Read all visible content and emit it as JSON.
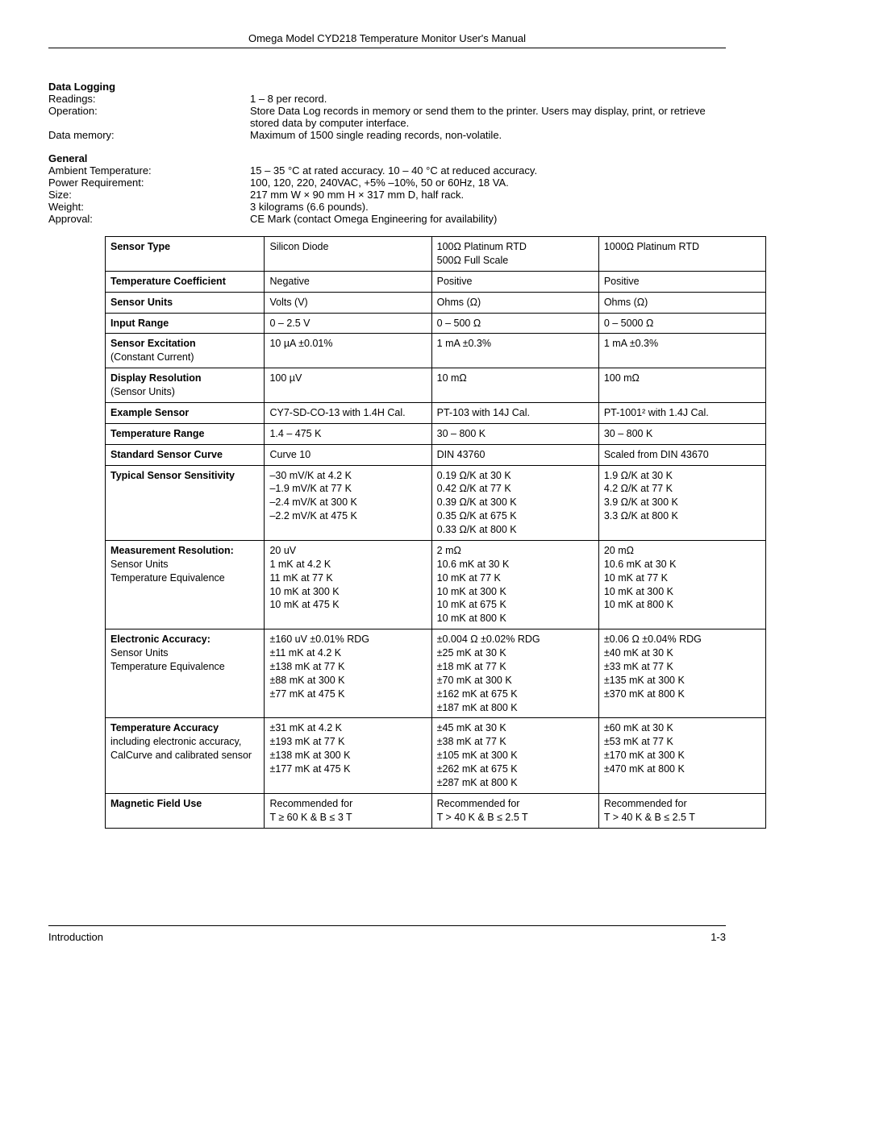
{
  "header": {
    "title": "Omega Model CYD218 Temperature Monitor User's Manual"
  },
  "dataLogging": {
    "heading": "Data Logging",
    "readings_label": "Readings:",
    "readings_value": "1 – 8 per record.",
    "operation_label": "Operation:",
    "operation_value": "Store Data Log records in memory or send them to the printer. Users may display, print, or retrieve stored data by computer interface.",
    "datamem_label": "Data memory:",
    "datamem_value": "Maximum of 1500 single reading records, non-volatile."
  },
  "general": {
    "heading": "General",
    "ambient_label": "Ambient Temperature:",
    "ambient_value": "15 – 35 °C at rated accuracy. 10 – 40 °C at reduced accuracy.",
    "power_label": "Power Requirement:",
    "power_value": "100, 120, 220, 240VAC, +5% –10%, 50 or 60Hz, 18 VA.",
    "size_label": "Size:",
    "size_value": "217 mm W × 90 mm H × 317 mm D, half rack.",
    "weight_label": "Weight:",
    "weight_value": "3 kilograms (6.6 pounds).",
    "approval_label": "Approval:",
    "approval_value": "CE Mark (contact Omega Engineering for availability)"
  },
  "table": {
    "rows": {
      "sensor_type": {
        "h": "Sensor Type",
        "c1": "Silicon Diode",
        "c2a": "100Ω Platinum RTD",
        "c2b": "500Ω Full Scale",
        "c3": "1000Ω Platinum RTD"
      },
      "temp_coeff": {
        "h": "Temperature Coefficient",
        "c1": "Negative",
        "c2": "Positive",
        "c3": "Positive"
      },
      "sensor_units": {
        "h": "Sensor Units",
        "c1": "Volts (V)",
        "c2": "Ohms (Ω)",
        "c3": "Ohms (Ω)"
      },
      "input_range": {
        "h": "Input Range",
        "c1": "0 – 2.5 V",
        "c2": "0 – 500 Ω",
        "c3": "0 – 5000 Ω"
      },
      "excitation": {
        "h1": "Sensor Excitation",
        "h2": "(Constant Current)",
        "c1": "10 µA ±0.01%",
        "c2": "1 mA ±0.3%",
        "c3": "1 mA ±0.3%"
      },
      "disp_res": {
        "h1": "Display Resolution",
        "h2": "(Sensor Units)",
        "c1": "100 µV",
        "c2": "10 mΩ",
        "c3": "100 mΩ"
      },
      "example": {
        "h": "Example Sensor",
        "c1": "CY7-SD-CO-13 with 1.4H Cal.",
        "c2": "PT-103 with 14J Cal.",
        "c3": "PT-1001² with 1.4J Cal."
      },
      "temp_range": {
        "h": "Temperature Range",
        "c1": "1.4 – 475 K",
        "c2": "30 – 800 K",
        "c3": "30 – 800 K"
      },
      "std_curve": {
        "h": "Standard Sensor Curve",
        "c1": "Curve 10",
        "c2": "DIN 43760",
        "c3": "Scaled from DIN 43670"
      },
      "sensitivity": {
        "h": "Typical Sensor Sensitivity",
        "c1": [
          "–30 mV/K at 4.2 K",
          "–1.9 mV/K at 77 K",
          "–2.4 mV/K at 300 K",
          "–2.2 mV/K at 475 K"
        ],
        "c2": [
          "0.19 Ω/K at 30 K",
          "0.42 Ω/K at 77 K",
          "0.39 Ω/K at 300 K",
          "0.35 Ω/K at 675 K",
          "0.33 Ω/K at 800 K"
        ],
        "c3": [
          "1.9 Ω/K at 30 K",
          "4.2 Ω/K at 77 K",
          "3.9 Ω/K at 300 K",
          "3.3 Ω/K at 800 K"
        ]
      },
      "meas_res": {
        "h": "Measurement Resolution:",
        "sub1": "Sensor Units",
        "sub2": "Temperature Equivalence",
        "c1": [
          "20 uV",
          "1 mK at 4.2 K",
          "11 mK at 77  K",
          "10 mK at 300 K",
          "10 mK at 475 K"
        ],
        "c2": [
          "2 mΩ",
          "10.6 mK at 30 K",
          "10 mK at 77 K",
          "10 mK at 300 K",
          "10 mK at 675 K",
          "10 mK at 800 K"
        ],
        "c3": [
          "20 mΩ",
          "10.6 mK at 30 K",
          "10 mK at 77 K",
          "10 mK at 300 K",
          "10 mK at 800 K"
        ]
      },
      "elec_acc": {
        "h": "Electronic Accuracy:",
        "sub1": "Sensor Units",
        "sub2": "Temperature Equivalence",
        "c1": [
          "±160 uV ±0.01% RDG",
          "±11 mK at 4.2 K",
          "±138 mK at 77 K",
          "±88 mK at 300 K",
          "±77 mK at 475 K"
        ],
        "c2": [
          "±0.004 Ω ±0.02% RDG",
          "±25 mK at 30 K",
          "±18 mK at 77 K",
          "±70 mK at 300 K",
          "±162 mK at 675 K",
          "±187 mK at 800 K"
        ],
        "c3": [
          "±0.06 Ω ±0.04% RDG",
          "±40 mK at 30 K",
          "±33 mK at 77 K",
          "±135 mK at 300 K",
          "±370 mK at 800 K"
        ]
      },
      "temp_acc": {
        "h1": "Temperature Accuracy",
        "h2": "including electronic accuracy, CalCurve and calibrated sensor",
        "c1": [
          "±31 mK at 4.2 K",
          "±193 mK at 77 K",
          "±138 mK at 300 K",
          "±177 mK at 475 K"
        ],
        "c2": [
          "±45 mK at 30 K",
          "±38 mK at 77 K",
          "±105 mK at 300 K",
          "±262 mK at 675 K",
          "±287 mK at 800 K"
        ],
        "c3": [
          "±60 mK at 30 K",
          "±53 mK at 77 K",
          "±170 mK at 300 K",
          "±470 mK at 800 K"
        ]
      },
      "magfield": {
        "h": "Magnetic Field Use",
        "c1": [
          "Recommended for",
          "T ≥ 60 K & B ≤ 3 T"
        ],
        "c2": [
          "Recommended for",
          "T > 40 K & B ≤ 2.5 T"
        ],
        "c3": [
          "Recommended for",
          "T > 40 K & B ≤ 2.5 T"
        ]
      }
    }
  },
  "footer": {
    "left": "Introduction",
    "right": "1-3"
  }
}
